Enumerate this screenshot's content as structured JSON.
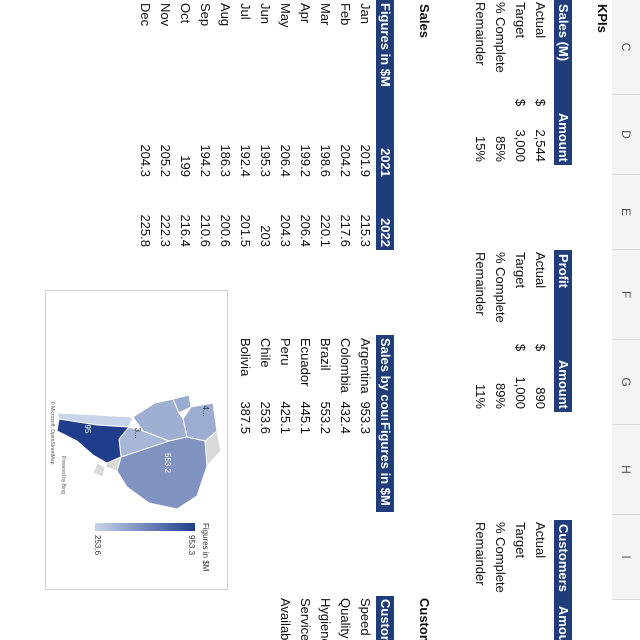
{
  "columns": [
    "C",
    "D",
    "E",
    "F",
    "G",
    "H",
    "I"
  ],
  "kpis": {
    "title": "KPIs",
    "tables": [
      {
        "headers": [
          "Sales (M)",
          "Amount"
        ],
        "rows": [
          {
            "label": "Actual",
            "currency": "$",
            "amount": "2,544"
          },
          {
            "label": "Target",
            "currency": "$",
            "amount": "3,000"
          },
          {
            "label": "% Complete",
            "amount": "85%"
          },
          {
            "label": "Remainder",
            "amount": "15%"
          }
        ]
      },
      {
        "headers": [
          "Profit",
          "Amount"
        ],
        "rows": [
          {
            "label": "Actual",
            "currency": "$",
            "amount": "890"
          },
          {
            "label": "Target",
            "currency": "$",
            "amount": "1,000"
          },
          {
            "label": "% Complete",
            "amount": "89%"
          },
          {
            "label": "Remainder",
            "amount": "11%"
          }
        ]
      },
      {
        "headers": [
          "Customers",
          "Amount"
        ],
        "rows": [
          {
            "label": "Actual"
          },
          {
            "label": "Target"
          },
          {
            "label": "% Complete"
          },
          {
            "label": "Remainder"
          }
        ]
      }
    ]
  },
  "sales": {
    "title": "Sales",
    "monthly": {
      "headers": [
        "Figures in $M",
        "2021",
        "2022"
      ],
      "rows": [
        [
          "Jan",
          201.9,
          215.3
        ],
        [
          "Feb",
          204.2,
          217.6
        ],
        [
          "Mar",
          198.6,
          220.1
        ],
        [
          "Apr",
          199.2,
          206.4
        ],
        [
          "May",
          206.4,
          204.3
        ],
        [
          "Jun",
          195.3,
          203
        ],
        [
          "Jul",
          192.4,
          201.5
        ],
        [
          "Aug",
          186.3,
          200.6
        ],
        [
          "Sep",
          194.2,
          210.6
        ],
        [
          "Oct",
          199,
          216.4
        ],
        [
          "Nov",
          205.2,
          222.3
        ],
        [
          "Dec",
          204.3,
          225.8
        ]
      ]
    },
    "by_country": {
      "headers": [
        "Sales by country",
        "Figures in $M"
      ],
      "rows": [
        [
          "Argentina",
          953.3
        ],
        [
          "Colombia",
          432.4
        ],
        [
          "Brazil",
          553.2
        ],
        [
          "Ecuador",
          445.1
        ],
        [
          "Peru",
          425.1
        ],
        [
          "Chile",
          253.6
        ],
        [
          "Bolivia",
          387.5
        ]
      ]
    }
  },
  "customers": {
    "title": "Customers",
    "header": "Customer",
    "rows": [
      "Speed",
      "Quality",
      "Hygiene",
      "Service",
      "Availability"
    ]
  },
  "map": {
    "legend_title": "Figures in $M",
    "legend_max": 953.3,
    "legend_min": 253.6,
    "labels": [
      "553.2",
      "95",
      "3...",
      "4..."
    ],
    "attribution": [
      "Powered by Bing",
      "© Microsoft, OpenStreetMap"
    ]
  }
}
